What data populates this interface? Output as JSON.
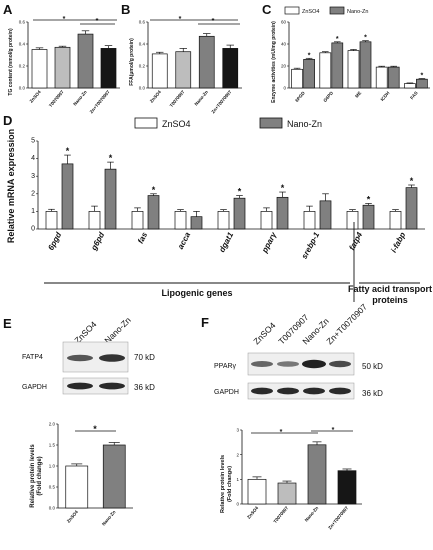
{
  "colors": {
    "znso4": "#ffffff",
    "t0070907": "#bdbdbd",
    "nano_zn": "#808080",
    "zn_t0070907": "#161616",
    "outline": "#111111"
  },
  "panels": {
    "a": {
      "letter": "A",
      "ylabel": "TG content (mmol/g protein)",
      "ylim": [
        0,
        0.6
      ],
      "yticks": [
        "0.0",
        "0.2",
        "0.4",
        "0.6"
      ],
      "categories": [
        "ZnSO4",
        "T0070907",
        "Nano-Zn",
        "Zn+T0070907"
      ],
      "values": [
        0.35,
        0.37,
        0.49,
        0.36
      ],
      "errors": [
        0.015,
        0.01,
        0.03,
        0.025
      ],
      "stars": [
        "*",
        "*"
      ]
    },
    "b": {
      "letter": "B",
      "ylabel": "FFA(μmol/g protein)",
      "ylim": [
        0,
        0.6
      ],
      "yticks": [
        "0.0",
        "0.2",
        "0.4",
        "0.6"
      ],
      "categories": [
        "ZnSO4",
        "T0070907",
        "Nano-Zn",
        "Zn+T0070907"
      ],
      "values": [
        0.31,
        0.33,
        0.47,
        0.36
      ],
      "errors": [
        0.015,
        0.03,
        0.025,
        0.03
      ],
      "stars": [
        "*",
        "*"
      ]
    },
    "c": {
      "letter": "C",
      "ylabel": "Enzyme activities (mU/mg protein)",
      "ylim": [
        0,
        60
      ],
      "yticks": [
        "0",
        "20",
        "40",
        "60"
      ],
      "legend": [
        "ZnSO4",
        "Nano-Zn"
      ],
      "categories": [
        "6PGD",
        "G6PD",
        "ME",
        "ICDH",
        "FAS"
      ],
      "series": [
        {
          "values": [
            17,
            32,
            34,
            19,
            4
          ],
          "errors": [
            1,
            1,
            1,
            0.8,
            0.6
          ]
        },
        {
          "values": [
            26,
            41,
            42,
            19,
            8
          ],
          "errors": [
            1,
            1,
            1,
            0.8,
            0.6
          ]
        }
      ],
      "stars": [
        "*",
        "*",
        "*",
        "*"
      ]
    },
    "d": {
      "letter": "D",
      "ylabel": "Relative mRNA expression",
      "ylim": [
        0,
        5
      ],
      "yticks": [
        "0",
        "1",
        "2",
        "3",
        "4",
        "5"
      ],
      "legend": [
        "ZnSO4",
        "Nano-Zn"
      ],
      "categories": [
        "6pgd",
        "g6pd",
        "fas",
        "acca",
        "dgat1",
        "pparγ",
        "srebp-1",
        "fatp4",
        "i-fabp"
      ],
      "series": [
        {
          "values": [
            1.0,
            1.0,
            1.0,
            1.0,
            1.0,
            1.0,
            1.0,
            1.0,
            1.0
          ],
          "errors": [
            0.12,
            0.3,
            0.2,
            0.1,
            0.1,
            0.2,
            0.3,
            0.1,
            0.1
          ]
        },
        {
          "values": [
            3.7,
            3.4,
            1.9,
            0.7,
            1.75,
            1.8,
            1.6,
            1.35,
            2.35
          ],
          "errors": [
            0.5,
            0.4,
            0.1,
            0.3,
            0.15,
            0.3,
            0.4,
            0.1,
            0.15
          ]
        }
      ],
      "stars": [
        "*",
        "*",
        "*",
        "*",
        "*",
        "*",
        "*"
      ],
      "group_labels": [
        "Lipogenic genes",
        "Fatty acid transport",
        "proteins"
      ]
    },
    "e": {
      "letter": "E",
      "lanes": [
        "ZnSO4",
        "Nano-Zn"
      ],
      "blots": [
        {
          "protein": "FATP4",
          "size": "70 kD"
        },
        {
          "protein": "GAPDH",
          "size": "36 kD"
        }
      ],
      "ylabel": [
        "Relative protein levels",
        "(Fold change)"
      ],
      "ylim": [
        0,
        2.0
      ],
      "yticks": [
        "0.0",
        "0.5",
        "1.0",
        "1.5",
        "2.0"
      ],
      "categories": [
        "ZnSO4",
        "Nano-Zn"
      ],
      "values": [
        1.0,
        1.5
      ],
      "errors": [
        0.05,
        0.06
      ],
      "stars": [
        "*"
      ]
    },
    "f": {
      "letter": "F",
      "lanes": [
        "ZnSO4",
        "T0070907",
        "Nano-Zn",
        "Zn+T0070907"
      ],
      "blots": [
        {
          "protein": "PPARγ",
          "size": "50 kD"
        },
        {
          "protein": "GAPDH",
          "size": "36 kD"
        }
      ],
      "ylabel": [
        "Relative protein levels",
        "(Fold change)"
      ],
      "ylim": [
        0,
        3
      ],
      "yticks": [
        "0",
        "1",
        "2",
        "3"
      ],
      "categories": [
        "ZnSO4",
        "T0070907",
        "Nano-Zn",
        "Zn+T0070907"
      ],
      "values": [
        1.0,
        0.85,
        2.4,
        1.35
      ],
      "errors": [
        0.1,
        0.08,
        0.12,
        0.07
      ],
      "stars": [
        "*",
        "*"
      ]
    }
  }
}
